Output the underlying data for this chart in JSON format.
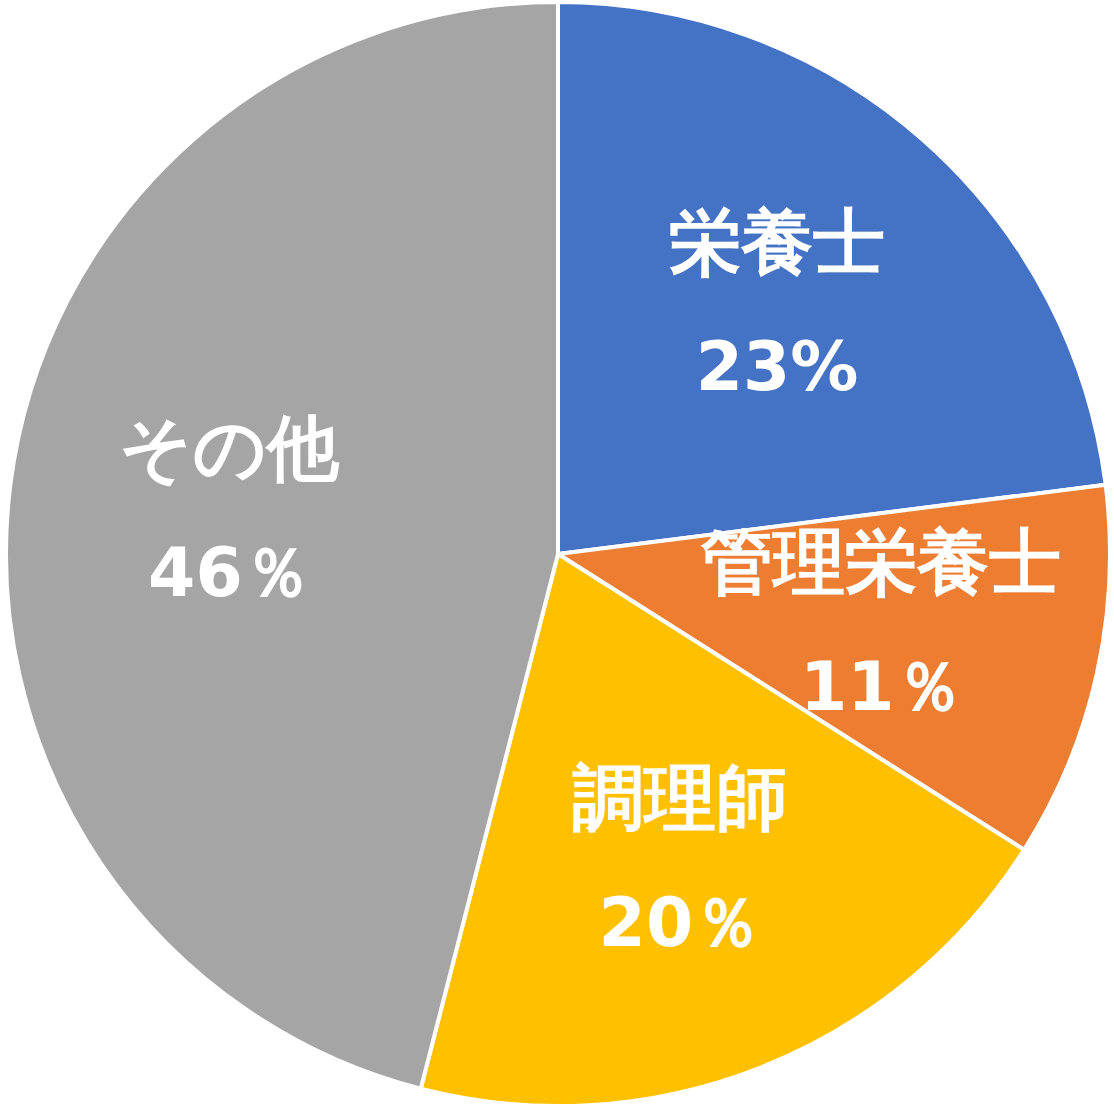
{
  "chart_data": {
    "type": "pie",
    "categories": [
      "栄養士",
      "管理栄養士",
      "調理師",
      "その他"
    ],
    "values": [
      23,
      11,
      20,
      46
    ],
    "colors": [
      "#4472c4",
      "#ed7d31",
      "#ffc000",
      "#a5a5a5"
    ],
    "value_labels": [
      "23%",
      "11％",
      "20％",
      "46％"
    ]
  }
}
